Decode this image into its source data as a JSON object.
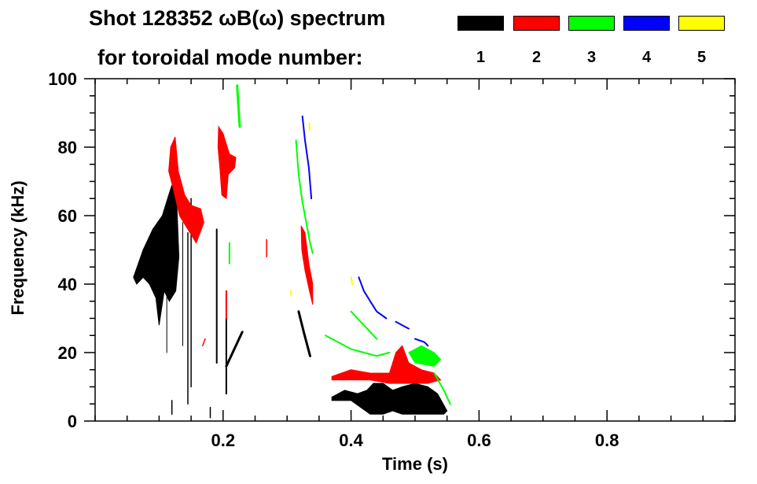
{
  "title": {
    "line1": "Shot 128352 ωB(ω) spectrum",
    "line2": "for toroidal mode number:"
  },
  "legend": [
    {
      "label": "1",
      "color": "#000000"
    },
    {
      "label": "2",
      "color": "#ff0000"
    },
    {
      "label": "3",
      "color": "#00ff00"
    },
    {
      "label": "4",
      "color": "#0000ff"
    },
    {
      "label": "5",
      "color": "#ffff00"
    }
  ],
  "chart_data": {
    "type": "heatmap",
    "title": "Shot 128352 ωB(ω) spectrum for toroidal mode number",
    "xlabel": "Time (s)",
    "ylabel": "Frequency (kHz)",
    "xlim": [
      0,
      1
    ],
    "ylim": [
      0,
      100
    ],
    "xticks": [
      0.2,
      0.4,
      0.6,
      0.8
    ],
    "xtick_labels": [
      "0.2",
      "0.4",
      "0.6",
      "0.8"
    ],
    "yticks": [
      0,
      20,
      40,
      60,
      80,
      100
    ],
    "ytick_labels": [
      "0",
      "20",
      "40",
      "60",
      "80",
      "100"
    ],
    "x_minor_step": 0.05,
    "y_minor_step": 5,
    "grid": false,
    "legend_position": "top-right",
    "features": [
      {
        "mode": 1,
        "kind": "blob",
        "points": [
          [
            0.06,
            42
          ],
          [
            0.075,
            50
          ],
          [
            0.09,
            56
          ],
          [
            0.105,
            60
          ],
          [
            0.115,
            66
          ],
          [
            0.122,
            70
          ],
          [
            0.128,
            62
          ],
          [
            0.131,
            48
          ],
          [
            0.126,
            38
          ],
          [
            0.116,
            35
          ],
          [
            0.108,
            38
          ],
          [
            0.1,
            28
          ],
          [
            0.095,
            36
          ],
          [
            0.085,
            40
          ],
          [
            0.075,
            42
          ],
          [
            0.065,
            40
          ]
        ]
      },
      {
        "mode": 1,
        "kind": "streak",
        "width": 2,
        "points": [
          [
            0.19,
            17
          ],
          [
            0.19,
            56
          ]
        ]
      },
      {
        "mode": 1,
        "kind": "streak",
        "width": 1.5,
        "points": [
          [
            0.145,
            5
          ],
          [
            0.145,
            55
          ]
        ]
      },
      {
        "mode": 1,
        "kind": "streak",
        "width": 1.5,
        "points": [
          [
            0.15,
            10
          ],
          [
            0.15,
            65
          ]
        ]
      },
      {
        "mode": 1,
        "kind": "streak",
        "width": 1,
        "points": [
          [
            0.137,
            22
          ],
          [
            0.137,
            58
          ]
        ]
      },
      {
        "mode": 1,
        "kind": "streak",
        "width": 1,
        "points": [
          [
            0.112,
            20
          ],
          [
            0.112,
            48
          ]
        ]
      },
      {
        "mode": 1,
        "kind": "streak",
        "width": 2,
        "points": [
          [
            0.205,
            8
          ],
          [
            0.205,
            30
          ]
        ]
      },
      {
        "mode": 1,
        "kind": "streak",
        "width": 3,
        "points": [
          [
            0.205,
            16
          ],
          [
            0.215,
            20
          ],
          [
            0.23,
            26
          ]
        ]
      },
      {
        "mode": 1,
        "kind": "streak",
        "width": 3,
        "points": [
          [
            0.318,
            32
          ],
          [
            0.326,
            26
          ],
          [
            0.336,
            19
          ]
        ]
      },
      {
        "mode": 1,
        "kind": "blob",
        "points": [
          [
            0.37,
            7
          ],
          [
            0.39,
            9
          ],
          [
            0.41,
            8
          ],
          [
            0.425,
            9
          ],
          [
            0.435,
            11
          ],
          [
            0.45,
            11
          ],
          [
            0.465,
            9
          ],
          [
            0.48,
            10
          ],
          [
            0.5,
            11
          ],
          [
            0.52,
            10
          ],
          [
            0.535,
            8
          ],
          [
            0.55,
            3
          ],
          [
            0.545,
            2
          ],
          [
            0.52,
            2
          ],
          [
            0.5,
            2
          ],
          [
            0.48,
            2
          ],
          [
            0.465,
            3
          ],
          [
            0.45,
            2
          ],
          [
            0.43,
            2
          ],
          [
            0.415,
            4
          ],
          [
            0.4,
            6
          ],
          [
            0.38,
            6
          ],
          [
            0.37,
            6
          ]
        ]
      },
      {
        "mode": 1,
        "kind": "streak",
        "width": 1.5,
        "points": [
          [
            0.18,
            1
          ],
          [
            0.18,
            4
          ]
        ]
      },
      {
        "mode": 1,
        "kind": "streak",
        "width": 1.5,
        "points": [
          [
            0.12,
            2
          ],
          [
            0.12,
            6
          ]
        ]
      },
      {
        "mode": 2,
        "kind": "blob",
        "points": [
          [
            0.118,
            80
          ],
          [
            0.125,
            83
          ],
          [
            0.13,
            73
          ],
          [
            0.14,
            66
          ],
          [
            0.15,
            63
          ],
          [
            0.165,
            62
          ],
          [
            0.17,
            58
          ],
          [
            0.158,
            52
          ],
          [
            0.145,
            56
          ],
          [
            0.132,
            60
          ],
          [
            0.122,
            68
          ],
          [
            0.115,
            73
          ]
        ]
      },
      {
        "mode": 2,
        "kind": "blob",
        "points": [
          [
            0.193,
            86
          ],
          [
            0.2,
            84
          ],
          [
            0.21,
            78
          ],
          [
            0.22,
            77
          ],
          [
            0.218,
            74
          ],
          [
            0.208,
            72
          ],
          [
            0.205,
            65
          ],
          [
            0.198,
            66
          ],
          [
            0.195,
            74
          ],
          [
            0.192,
            80
          ]
        ]
      },
      {
        "mode": 2,
        "kind": "streak",
        "width": 2,
        "points": [
          [
            0.205,
            30
          ],
          [
            0.205,
            38
          ]
        ]
      },
      {
        "mode": 2,
        "kind": "blob",
        "points": [
          [
            0.322,
            57
          ],
          [
            0.328,
            55
          ],
          [
            0.334,
            46
          ],
          [
            0.34,
            40
          ],
          [
            0.34,
            34
          ],
          [
            0.335,
            38
          ],
          [
            0.328,
            44
          ],
          [
            0.323,
            50
          ]
        ]
      },
      {
        "mode": 2,
        "kind": "blob",
        "points": [
          [
            0.37,
            13
          ],
          [
            0.4,
            15
          ],
          [
            0.43,
            14
          ],
          [
            0.46,
            14
          ],
          [
            0.47,
            20
          ],
          [
            0.48,
            22
          ],
          [
            0.49,
            17
          ],
          [
            0.51,
            15
          ],
          [
            0.53,
            14
          ],
          [
            0.54,
            12
          ],
          [
            0.52,
            11
          ],
          [
            0.49,
            11
          ],
          [
            0.46,
            11
          ],
          [
            0.43,
            12
          ],
          [
            0.4,
            12
          ],
          [
            0.37,
            12
          ]
        ]
      },
      {
        "mode": 2,
        "kind": "streak",
        "width": 1.5,
        "points": [
          [
            0.268,
            53
          ],
          [
            0.268,
            48
          ]
        ]
      },
      {
        "mode": 2,
        "kind": "streak",
        "width": 1.5,
        "points": [
          [
            0.168,
            22
          ],
          [
            0.172,
            24
          ]
        ]
      },
      {
        "mode": 3,
        "kind": "streak",
        "width": 3,
        "points": [
          [
            0.222,
            98
          ],
          [
            0.224,
            92
          ],
          [
            0.226,
            86
          ]
        ]
      },
      {
        "mode": 3,
        "kind": "streak",
        "width": 2,
        "points": [
          [
            0.314,
            82
          ],
          [
            0.318,
            72
          ],
          [
            0.324,
            64
          ],
          [
            0.33,
            58
          ],
          [
            0.336,
            52
          ],
          [
            0.34,
            49
          ]
        ]
      },
      {
        "mode": 3,
        "kind": "streak",
        "width": 2,
        "points": [
          [
            0.21,
            52
          ],
          [
            0.21,
            46
          ]
        ]
      },
      {
        "mode": 3,
        "kind": "streak",
        "width": 2,
        "points": [
          [
            0.36,
            25
          ],
          [
            0.38,
            23
          ],
          [
            0.4,
            21
          ],
          [
            0.42,
            20
          ],
          [
            0.44,
            19
          ],
          [
            0.46,
            20
          ]
        ]
      },
      {
        "mode": 3,
        "kind": "streak",
        "width": 2,
        "points": [
          [
            0.4,
            32
          ],
          [
            0.42,
            28
          ],
          [
            0.44,
            24
          ]
        ]
      },
      {
        "mode": 3,
        "kind": "blob",
        "points": [
          [
            0.49,
            20
          ],
          [
            0.51,
            22
          ],
          [
            0.53,
            20
          ],
          [
            0.54,
            18
          ],
          [
            0.53,
            16
          ],
          [
            0.5,
            17
          ]
        ]
      },
      {
        "mode": 3,
        "kind": "streak",
        "width": 2,
        "points": [
          [
            0.53,
            14
          ],
          [
            0.545,
            9
          ],
          [
            0.555,
            5
          ]
        ]
      },
      {
        "mode": 4,
        "kind": "streak",
        "width": 2,
        "points": [
          [
            0.324,
            89
          ],
          [
            0.328,
            82
          ],
          [
            0.334,
            74
          ],
          [
            0.338,
            65
          ]
        ]
      },
      {
        "mode": 4,
        "kind": "streak",
        "width": 2,
        "points": [
          [
            0.412,
            42
          ],
          [
            0.42,
            38
          ],
          [
            0.43,
            35
          ],
          [
            0.44,
            32
          ],
          [
            0.455,
            30
          ]
        ]
      },
      {
        "mode": 4,
        "kind": "streak",
        "width": 2,
        "points": [
          [
            0.47,
            29
          ],
          [
            0.48,
            28
          ],
          [
            0.49,
            27
          ]
        ]
      },
      {
        "mode": 4,
        "kind": "streak",
        "width": 2,
        "points": [
          [
            0.5,
            24
          ],
          [
            0.515,
            23
          ],
          [
            0.52,
            22
          ]
        ]
      },
      {
        "mode": 5,
        "kind": "streak",
        "width": 2,
        "points": [
          [
            0.335,
            87
          ],
          [
            0.335,
            85
          ]
        ]
      },
      {
        "mode": 5,
        "kind": "streak",
        "width": 2,
        "points": [
          [
            0.4,
            42
          ],
          [
            0.402,
            40
          ]
        ]
      },
      {
        "mode": 5,
        "kind": "streak",
        "width": 2,
        "points": [
          [
            0.306,
            38
          ],
          [
            0.306,
            37
          ]
        ]
      }
    ]
  }
}
